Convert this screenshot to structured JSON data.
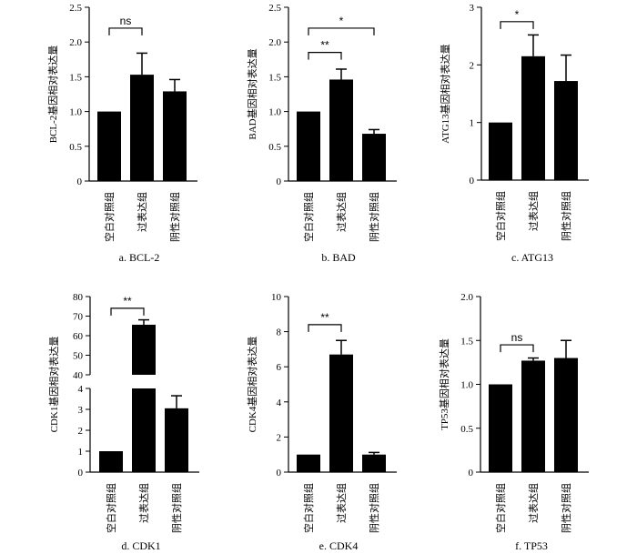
{
  "chart_data": [
    {
      "id": "bcl2",
      "type": "bar",
      "caption": "a.  BCL-2",
      "ylabel": "BCL-2基因相对表达量",
      "categories": [
        "空白对照组",
        "过表达组",
        "阴性对照组"
      ],
      "values": [
        1.0,
        1.53,
        1.29
      ],
      "errors": [
        0,
        0.31,
        0.17
      ],
      "ylim": [
        0,
        2.5
      ],
      "yticks": [
        0,
        0.5,
        1.0,
        1.5,
        2.0,
        2.5
      ],
      "ytick_labels": [
        "0",
        "0.5",
        "1.0",
        "1.5",
        "2.0",
        "2.5"
      ],
      "significance": [
        {
          "from": 0,
          "to": 1,
          "label": "ns",
          "y": 2.2
        }
      ]
    },
    {
      "id": "bad",
      "type": "bar",
      "caption": "b.  BAD",
      "ylabel": "BAD基因相对表达量",
      "categories": [
        "空白对照组",
        "过表达组",
        "阴性对照组"
      ],
      "values": [
        1.0,
        1.46,
        0.68
      ],
      "errors": [
        0,
        0.15,
        0.06
      ],
      "ylim": [
        0,
        2.5
      ],
      "yticks": [
        0,
        0.5,
        1.0,
        1.5,
        2.0,
        2.5
      ],
      "ytick_labels": [
        "0",
        "0.5",
        "1.0",
        "1.5",
        "2.0",
        "2.5"
      ],
      "significance": [
        {
          "from": 0,
          "to": 1,
          "label": "**",
          "y": 1.85
        },
        {
          "from": 0,
          "to": 2,
          "label": "*",
          "y": 2.2
        }
      ]
    },
    {
      "id": "atg13",
      "type": "bar",
      "caption": "c.  ATG13",
      "ylabel": "ATG13基因相对表达量",
      "categories": [
        "空白对照组",
        "过表达组",
        "阴性对照组"
      ],
      "values": [
        1.0,
        2.15,
        1.72
      ],
      "errors": [
        0,
        0.37,
        0.45
      ],
      "ylim": [
        0,
        3
      ],
      "yticks": [
        0,
        1,
        2,
        3
      ],
      "ytick_labels": [
        "0",
        "1",
        "2",
        "3"
      ],
      "significance": [
        {
          "from": 0,
          "to": 1,
          "label": "*",
          "y": 2.75
        }
      ]
    },
    {
      "id": "cdk1",
      "type": "bar",
      "broken_axis": true,
      "caption": "d.  CDK1",
      "ylabel": "CDK1基因相对表达量",
      "categories": [
        "空白对照组",
        "过表达组",
        "阴性对照组"
      ],
      "values": [
        1.0,
        65.6,
        3.05
      ],
      "errors": [
        0,
        2.5,
        0.6
      ],
      "ylim": [
        0,
        80
      ],
      "lower_range": [
        0,
        4
      ],
      "upper_range": [
        40,
        80
      ],
      "yticks_lower": [
        0,
        1,
        2,
        3,
        4
      ],
      "yticks_upper": [
        40,
        50,
        60,
        70,
        80
      ],
      "ytick_labels_lower": [
        "0",
        "1",
        "2",
        "3",
        "4"
      ],
      "ytick_labels_upper": [
        "40",
        "50",
        "60",
        "70",
        "80"
      ],
      "significance": [
        {
          "from": 0,
          "to": 1,
          "label": "**",
          "y": 74
        }
      ]
    },
    {
      "id": "cdk4",
      "type": "bar",
      "caption": "e.  CDK4",
      "ylabel": "CDK4基因相对表达量",
      "categories": [
        "空白对照组",
        "过表达组",
        "阴性对照组"
      ],
      "values": [
        1.0,
        6.7,
        1.0
      ],
      "errors": [
        0,
        0.8,
        0.12
      ],
      "ylim": [
        0,
        10
      ],
      "yticks": [
        0,
        2,
        4,
        6,
        8,
        10
      ],
      "ytick_labels": [
        "0",
        "2",
        "4",
        "6",
        "8",
        "10"
      ],
      "significance": [
        {
          "from": 0,
          "to": 1,
          "label": "**",
          "y": 8.4
        }
      ]
    },
    {
      "id": "tp53",
      "type": "bar",
      "caption": "f.  TP53",
      "ylabel": "TP53基因相对表达量",
      "categories": [
        "空白对照组",
        "过表达组",
        "阴性对照组"
      ],
      "values": [
        1.0,
        1.27,
        1.3
      ],
      "errors": [
        0,
        0.03,
        0.2
      ],
      "ylim": [
        0,
        2.0
      ],
      "yticks": [
        0,
        0.5,
        1.0,
        1.5,
        2.0
      ],
      "ytick_labels": [
        "0",
        "0.5",
        "1.0",
        "1.5",
        "2.0"
      ],
      "significance": [
        {
          "from": 0,
          "to": 1,
          "label": "ns",
          "y": 1.45
        }
      ]
    }
  ]
}
